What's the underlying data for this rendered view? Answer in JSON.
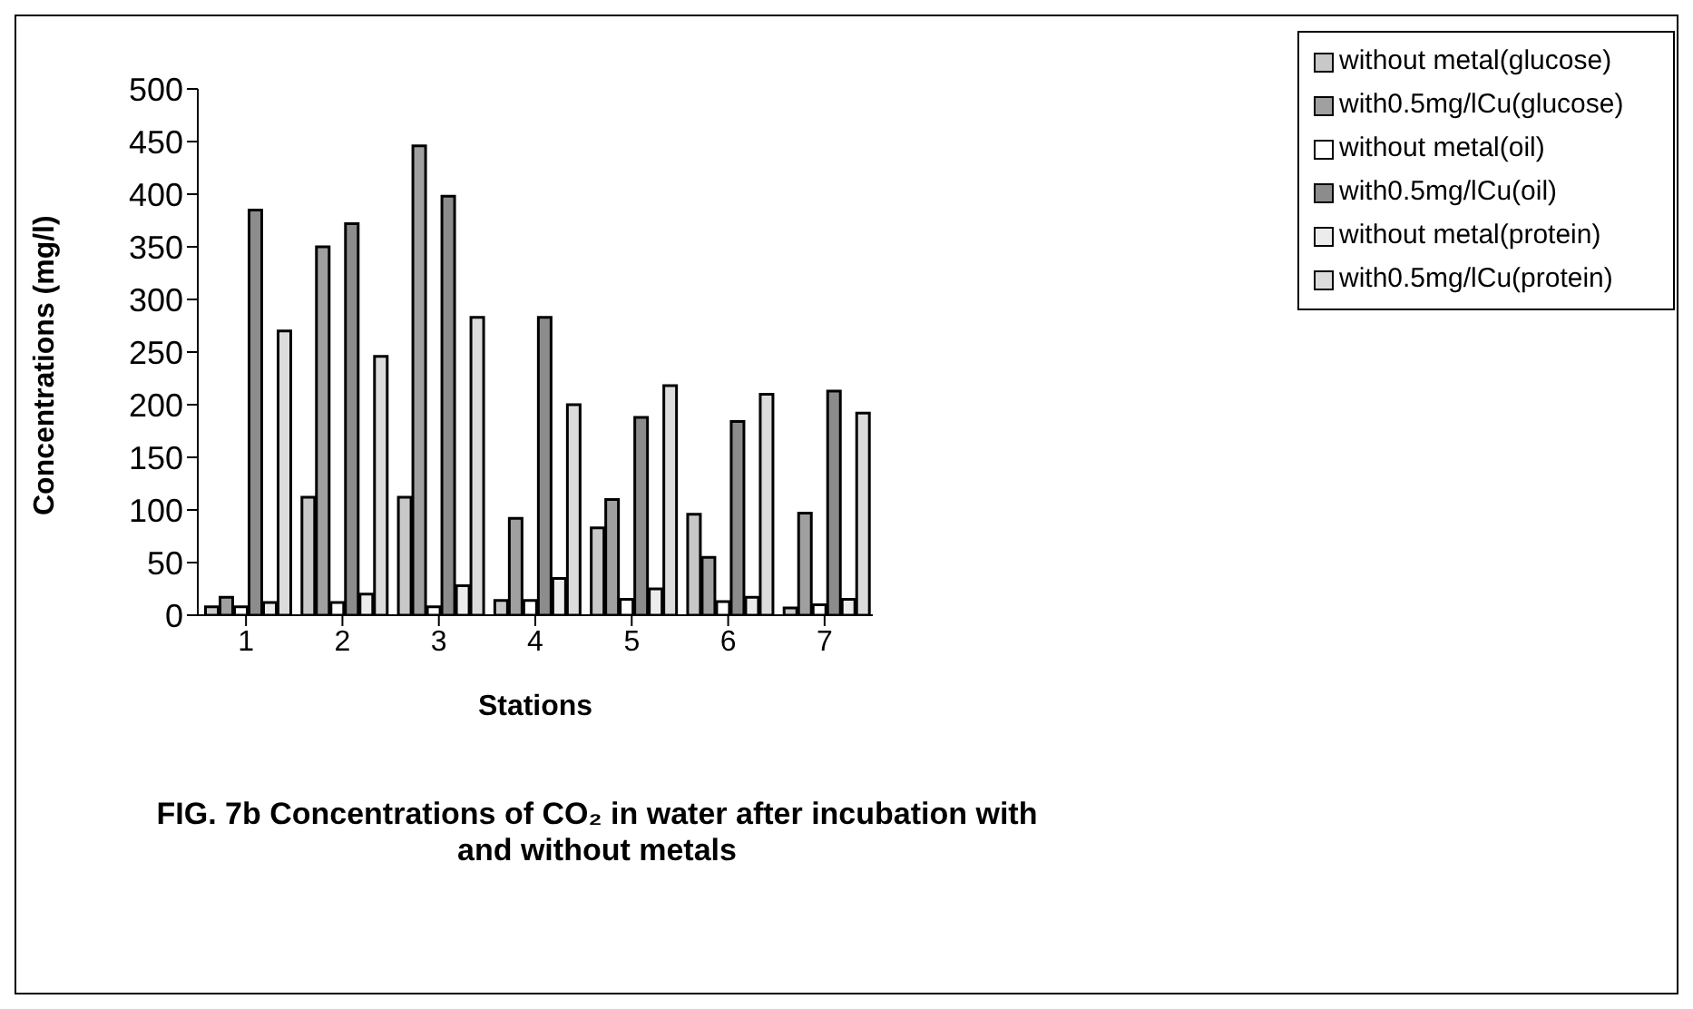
{
  "chart_data": {
    "type": "bar",
    "title": "FIG. 7b Concentrations of CO₂ in water  after incubation with and without metals",
    "xlabel": "Stations",
    "ylabel": "Concentrations (mg/l)",
    "categories": [
      "1",
      "2",
      "3",
      "4",
      "5",
      "6",
      "7"
    ],
    "series": [
      {
        "name": "without metal(glucose)",
        "color": "#c8c8c8",
        "values": [
          8,
          112,
          112,
          14,
          83,
          96,
          7
        ]
      },
      {
        "name": "with0.5mg/lCu(glucose)",
        "color": "#a0a0a0",
        "values": [
          17,
          350,
          446,
          92,
          110,
          55,
          97
        ]
      },
      {
        "name": "without metal(oil)",
        "color": "#ffffff",
        "values": [
          8,
          12,
          8,
          14,
          15,
          13,
          10
        ]
      },
      {
        "name": "with0.5mg/lCu(oil)",
        "color": "#8c8c8c",
        "values": [
          385,
          372,
          398,
          283,
          188,
          184,
          213
        ]
      },
      {
        "name": "without metal(protein)",
        "color": "#ececec",
        "values": [
          12,
          20,
          28,
          35,
          25,
          17,
          15
        ]
      },
      {
        "name": "with0.5mg/lCu(protein)",
        "color": "#dcdcdc",
        "values": [
          270,
          246,
          283,
          200,
          218,
          210,
          192
        ]
      }
    ],
    "ylim": [
      0,
      500
    ],
    "yticks": [
      0,
      50,
      100,
      150,
      200,
      250,
      300,
      350,
      400,
      450,
      500
    ],
    "grid": false,
    "legend": "top right"
  }
}
